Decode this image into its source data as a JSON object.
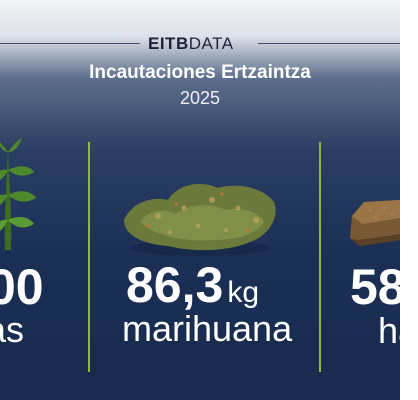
{
  "brand": {
    "bold": "EITB",
    "light": "DATA"
  },
  "title": "Incautaciones Ertzaintza",
  "year": "2025",
  "columns": [
    {
      "value": "00",
      "unit": "",
      "label": "as",
      "icon": "cannabis-plant-icon"
    },
    {
      "value": "86,3",
      "unit": "kg",
      "label": "marihuana",
      "icon": "marijuana-bud-icon"
    },
    {
      "value": "58",
      "unit": "",
      "label": "ha",
      "icon": "hashish-block-icon"
    }
  ],
  "colors": {
    "accent": "#8fb838",
    "background": "#1b2f55"
  }
}
